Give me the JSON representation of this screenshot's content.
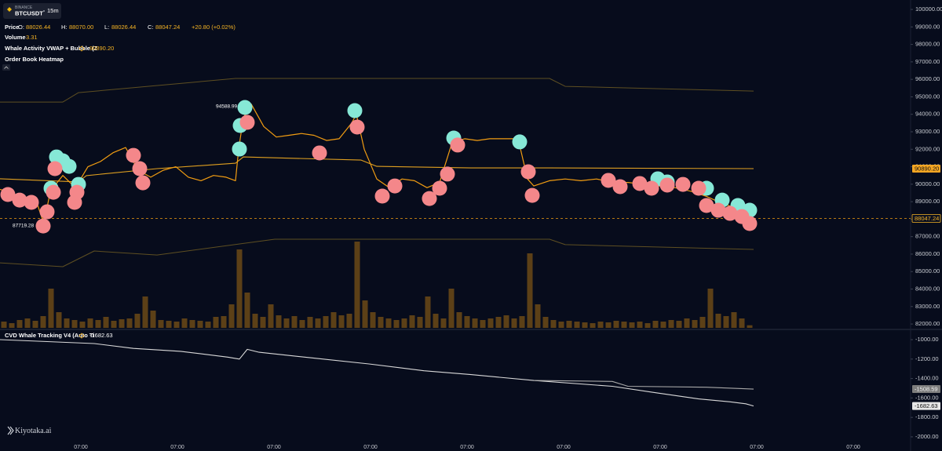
{
  "header": {
    "exchange": "BINANCE",
    "symbol": "BTCUSDT",
    "interval": "15m",
    "price_label": "Price",
    "ohlc": [
      {
        "key": "O:",
        "value": "88026.44"
      },
      {
        "key": "H:",
        "value": "88070.00"
      },
      {
        "key": "L:",
        "value": "88026.44"
      },
      {
        "key": "C:",
        "value": "88047.24"
      }
    ],
    "change": "+20.80 (+0.02%)",
    "volume_label": "Volume",
    "indicator": "Whale Activity VWAP + Bubble (Z",
    "indicator_value": "90890.20",
    "heatmap": "Order Book Heatmap"
  },
  "brand": "Kiyotaka.ai",
  "chart_data": [
    {
      "type": "line",
      "xlim": [
        0,
        290
      ],
      "xticks": [
        {
          "value": 25.75,
          "label": "07:00"
        },
        {
          "value": 56.5,
          "label": "07:00"
        },
        {
          "value": 87.25,
          "label": "07:00"
        },
        {
          "value": 118,
          "label": "07:00"
        },
        {
          "value": 148.75,
          "label": "07:00"
        },
        {
          "value": 179.5,
          "label": "07:00"
        },
        {
          "value": 210.25,
          "label": "07:00"
        },
        {
          "value": 241,
          "label": "07:00"
        },
        {
          "value": 271.75,
          "label": "07:00"
        }
      ],
      "ylim": [
        81780,
        100540
      ],
      "yticks": [
        {
          "value": 82000,
          "label": "82000.00"
        },
        {
          "value": 83000,
          "label": "83000.00"
        },
        {
          "value": 84000,
          "label": "84000.00"
        },
        {
          "value": 85000,
          "label": "85000.00"
        },
        {
          "value": 86000,
          "label": "86000.00"
        },
        {
          "value": 87000,
          "label": "87000.00"
        },
        {
          "value": 88000,
          "label": "88000.00"
        },
        {
          "value": 89000,
          "label": "89000.00"
        },
        {
          "value": 90000,
          "label": "90000.00"
        },
        {
          "value": 91000,
          "label": "91000.00"
        },
        {
          "value": 92000,
          "label": "92000.00"
        },
        {
          "value": 93000,
          "label": "93000.00"
        },
        {
          "value": 94000,
          "label": "94000.00"
        },
        {
          "value": 95000,
          "label": "95000.00"
        },
        {
          "value": 96000,
          "label": "96000.00"
        },
        {
          "value": 97000,
          "label": "97000.00"
        },
        {
          "value": 98000,
          "label": "98000.00"
        },
        {
          "value": 99000,
          "label": "99000.00"
        },
        {
          "value": 100000,
          "label": "100000.00"
        }
      ],
      "series": [
        {
          "color": "#f29d12",
          "x": [
            0,
            4,
            8,
            12,
            14,
            16,
            20,
            24,
            28,
            32,
            36,
            40,
            44,
            48,
            52,
            56,
            60,
            64,
            68,
            72,
            75,
            76,
            77.5,
            80,
            84,
            88,
            92,
            96,
            100,
            104,
            108,
            112,
            113.5,
            116,
            120,
            124,
            128,
            132,
            136,
            140,
            144,
            148,
            152,
            156,
            160,
            165,
            168,
            170,
            175,
            180,
            185,
            190,
            195,
            200,
            205,
            210,
            215,
            220,
            225,
            230,
            235,
            239.5
          ],
          "values": [
            89700,
            89500,
            89000,
            88800,
            87719.28,
            89600,
            90500,
            89800,
            91000,
            91300,
            91800,
            92100,
            90800,
            90400,
            90800,
            91000,
            90400,
            90200,
            90500,
            90400,
            90200,
            92000,
            93800,
            94588.99,
            93300,
            92700,
            92800,
            92900,
            92800,
            92500,
            92600,
            93500,
            94000,
            92000,
            90300,
            89800,
            90300,
            90200,
            89800,
            90100,
            92400,
            92600,
            92500,
            92600,
            92600,
            92600,
            90300,
            89900,
            90200,
            90300,
            90200,
            90300,
            90100,
            90100,
            90000,
            89900,
            89800,
            89600,
            89300,
            88900,
            88600,
            88047.24
          ]
        },
        {
          "color": "#e0a020",
          "x": [
            0,
            25,
            27.5,
            50,
            75,
            77.5,
            115,
            120,
            150,
            175,
            240
          ],
          "values": [
            90310,
            90130,
            90490,
            90890,
            91200,
            91560,
            91380,
            91020,
            90930,
            90930,
            90890.2
          ]
        },
        {
          "color": "#5e4f22",
          "x": [
            0,
            20,
            25,
            75,
            87.5,
            175,
            180,
            240
          ],
          "values": [
            94700,
            94700,
            95240,
            96050,
            96050,
            96050,
            95600,
            95330
          ]
        },
        {
          "color": "#5e4f22",
          "x": [
            0,
            20,
            30,
            50,
            87.5,
            175,
            180,
            240
          ],
          "values": [
            85500,
            85280,
            86180,
            85950,
            86850,
            86850,
            86540,
            86270
          ]
        }
      ],
      "bubbles": [
        {
          "color": "#86e8d6",
          "x": [
            18,
            20,
            22,
            25,
            16.25,
            78,
            76.5,
            76.25,
            113,
            144.5,
            165.5,
            209.5,
            212.5,
            225,
            230,
            235,
            238.75
          ],
          "values": [
            91560,
            91340,
            91020,
            89990,
            89770,
            94390,
            93360,
            92010,
            94210,
            92640,
            92420,
            90310,
            90130,
            89770,
            89090,
            88780,
            88510
          ]
        },
        {
          "color": "#f4878a",
          "x": [
            2.5,
            6.25,
            10,
            13.75,
            15,
            17,
            17.5,
            23.75,
            24.5,
            42.5,
            44.5,
            45.5,
            78.75,
            101.75,
            113.75,
            121.75,
            125.75,
            136.75,
            140,
            142.5,
            145.75,
            168.25,
            169.5,
            193.75,
            197.5,
            203.75,
            207.5,
            212.5,
            217.5,
            222.5,
            225,
            228.75,
            232.5,
            236.25,
            238.75
          ],
          "values": [
            89410,
            89090,
            88960,
            87610,
            88420,
            89540,
            90890,
            88960,
            89540,
            91650,
            90890,
            90080,
            93540,
            91790,
            93270,
            89320,
            89900,
            89180,
            89770,
            90580,
            92240,
            90710,
            89360,
            90220,
            89860,
            90040,
            89770,
            89950,
            89990,
            89770,
            88780,
            88510,
            88330,
            88150,
            87750
          ]
        }
      ],
      "volume": {
        "color": "#6b4a16",
        "ylim": [
          0,
          150
        ],
        "x": [
          1.25,
          3.75,
          6.25,
          8.75,
          11.25,
          13.75,
          16.25,
          18.75,
          21.25,
          23.75,
          26.25,
          28.75,
          31.25,
          33.75,
          36.25,
          38.75,
          41.25,
          43.75,
          46.25,
          48.75,
          51.25,
          53.75,
          56.25,
          58.75,
          61.25,
          63.75,
          66.25,
          68.75,
          71.25,
          73.75,
          76.25,
          78.75,
          81.25,
          83.75,
          86.25,
          88.75,
          91.25,
          93.75,
          96.25,
          98.75,
          101.25,
          103.75,
          106.25,
          108.75,
          111.25,
          113.75,
          116.25,
          118.75,
          121.25,
          123.75,
          126.25,
          128.75,
          131.25,
          133.75,
          136.25,
          138.75,
          141.25,
          143.75,
          146.25,
          148.75,
          151.25,
          153.75,
          156.25,
          158.75,
          161.25,
          163.75,
          166.25,
          168.75,
          171.25,
          173.75,
          176.25,
          178.75,
          181.25,
          183.75,
          186.25,
          188.75,
          191.25,
          193.75,
          196.25,
          198.75,
          201.25,
          203.75,
          206.25,
          208.75,
          211.25,
          213.75,
          216.25,
          218.75,
          221.25,
          223.75,
          226.25,
          228.75,
          231.25,
          233.75,
          236.25,
          238.75
        ],
        "values": [
          8,
          6,
          10,
          12,
          9,
          15,
          50,
          20,
          12,
          10,
          8,
          12,
          10,
          14,
          9,
          11,
          12,
          18,
          40,
          22,
          10,
          9,
          8,
          12,
          10,
          9,
          8,
          14,
          15,
          30,
          100,
          45,
          18,
          14,
          30,
          16,
          12,
          15,
          10,
          14,
          12,
          15,
          20,
          16,
          18,
          110,
          35,
          20,
          14,
          12,
          10,
          12,
          16,
          14,
          40,
          18,
          12,
          50,
          20,
          15,
          12,
          10,
          12,
          14,
          16,
          12,
          15,
          95,
          30,
          14,
          10,
          8,
          9,
          8,
          7,
          6,
          8,
          7,
          9,
          8,
          7,
          8,
          6,
          9,
          8,
          10,
          9,
          12,
          10,
          14,
          50,
          18,
          15,
          20,
          12,
          3.31
        ]
      }
    },
    {
      "type": "line",
      "title": "CVD Whale Tracking V4 (Auto Ti",
      "xlim": [
        0,
        290
      ],
      "ylim": [
        -2065,
        -911
      ],
      "yticks": [
        {
          "value": -1000,
          "label": "-1000.00"
        },
        {
          "value": -1200,
          "label": "-1200.00"
        },
        {
          "value": -1400,
          "label": "-1400.00"
        },
        {
          "value": -1600,
          "label": "-1600.00"
        },
        {
          "value": -1800,
          "label": "-1800.00"
        },
        {
          "value": -2000,
          "label": "-2000.00"
        }
      ],
      "series": [
        {
          "color": "#d9d9d9",
          "x": [
            0,
            15,
            30,
            42.5,
            57.5,
            72.5,
            76.25,
            78.75,
            82.5,
            100,
            117.5,
            135,
            150,
            170,
            195,
            207.5,
            222.5,
            232.5,
            237.5,
            240
          ],
          "values": [
            -1000,
            -1020,
            -1040,
            -1090,
            -1120,
            -1180,
            -1200,
            -1100,
            -1130,
            -1190,
            -1250,
            -1320,
            -1360,
            -1420,
            -1480,
            -1540,
            -1610,
            -1640,
            -1660,
            -1682.63
          ]
        },
        {
          "color": "#a8a8a8",
          "x": [
            170,
            195,
            200,
            225,
            240
          ],
          "values": [
            -1420,
            -1430,
            -1480,
            -1490,
            -1508.59
          ]
        }
      ]
    }
  ]
}
